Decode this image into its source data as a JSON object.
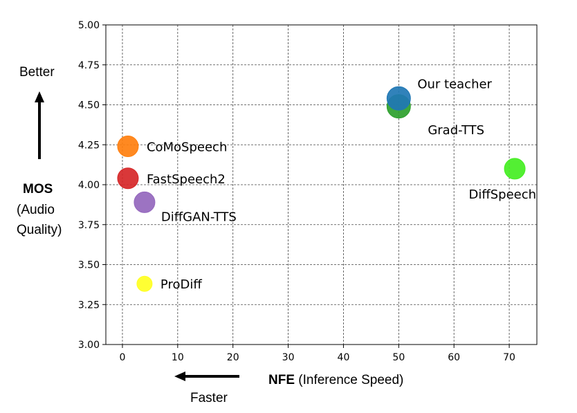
{
  "chart_data": {
    "type": "scatter",
    "title": "",
    "xlabel": "",
    "ylabel": "",
    "xlim": [
      -3,
      75
    ],
    "ylim": [
      3.0,
      5.0
    ],
    "xticks": [
      "0",
      "10",
      "20",
      "30",
      "40",
      "50",
      "60",
      "70"
    ],
    "yticks": [
      "3.00",
      "3.25",
      "3.50",
      "3.75",
      "4.00",
      "4.25",
      "4.50",
      "4.75",
      "5.00"
    ],
    "grid": true,
    "points": [
      {
        "label": "Grad-TTS",
        "x": 50,
        "y": 4.49,
        "color": "#2ca02c",
        "size": "large",
        "label_pos": "below-right"
      },
      {
        "label": "Our teacher",
        "x": 50,
        "y": 4.54,
        "color": "#1f77b4",
        "size": "large",
        "label_pos": "above-right"
      },
      {
        "label": "CoMoSpeech",
        "x": 1,
        "y": 4.24,
        "color": "#ff7f0e",
        "size": "medium",
        "label_pos": "right"
      },
      {
        "label": "FastSpeech2",
        "x": 1,
        "y": 4.04,
        "color": "#d62728",
        "size": "medium",
        "label_pos": "right"
      },
      {
        "label": "DiffGAN-TTS",
        "x": 4,
        "y": 3.89,
        "color": "#9467bd",
        "size": "medium",
        "label_pos": "below-right"
      },
      {
        "label": "ProDiff",
        "x": 4,
        "y": 3.38,
        "color": "#ffff22",
        "size": "small",
        "label_pos": "right"
      },
      {
        "label": "DiffSpeech",
        "x": 71,
        "y": 4.1,
        "color": "#44ee22",
        "size": "medium",
        "label_pos": "below-left"
      }
    ]
  },
  "annotations": {
    "better": "Better",
    "faster": "Faster",
    "mos_bold": "MOS",
    "mos_line2": "(Audio",
    "mos_line3": "Quality)",
    "nfe_bold": "NFE",
    "nfe_rest": " (Inference Speed)"
  }
}
